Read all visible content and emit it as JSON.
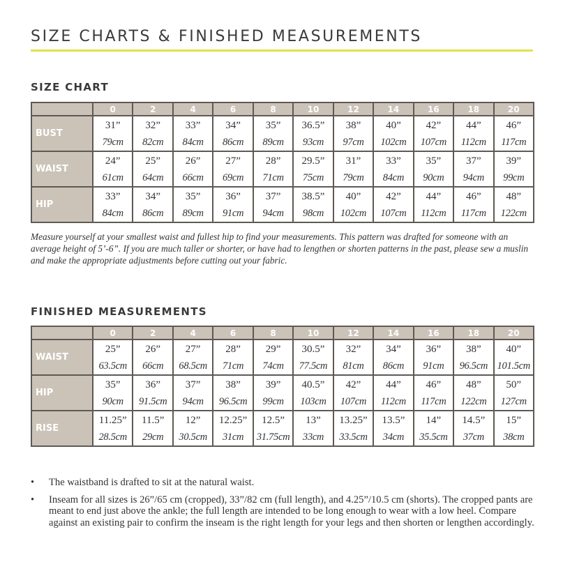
{
  "title": "SIZE CHARTS & FINISHED MEASUREMENTS",
  "accent_color": "#e1e34a",
  "header_color": "#cbc3b8",
  "size_chart": {
    "heading": "SIZE CHART",
    "sizes": [
      "0",
      "2",
      "4",
      "6",
      "8",
      "10",
      "12",
      "14",
      "16",
      "18",
      "20"
    ],
    "rows": [
      {
        "label": "BUST",
        "in": [
          "31”",
          "32”",
          "33”",
          "34”",
          "35”",
          "36.5”",
          "38”",
          "40”",
          "42”",
          "44”",
          "46”"
        ],
        "cm": [
          "79cm",
          "82cm",
          "84cm",
          "86cm",
          "89cm",
          "93cm",
          "97cm",
          "102cm",
          "107cm",
          "112cm",
          "117cm"
        ]
      },
      {
        "label": "WAIST",
        "in": [
          "24”",
          "25”",
          "26”",
          "27”",
          "28”",
          "29.5”",
          "31”",
          "33”",
          "35”",
          "37”",
          "39”"
        ],
        "cm": [
          "61cm",
          "64cm",
          "66cm",
          "69cm",
          "71cm",
          "75cm",
          "79cm",
          "84cm",
          "90cm",
          "94cm",
          "99cm"
        ]
      },
      {
        "label": "HIP",
        "in": [
          "33”",
          "34”",
          "35”",
          "36”",
          "37”",
          "38.5”",
          "40”",
          "42”",
          "44”",
          "46”",
          "48”"
        ],
        "cm": [
          "84cm",
          "86cm",
          "89cm",
          "91cm",
          "94cm",
          "98cm",
          "102cm",
          "107cm",
          "112cm",
          "117cm",
          "122cm"
        ]
      }
    ],
    "note": "Measure yourself at your smallest waist and fullest hip to find your measurements. This pattern was drafted for someone with an average height of 5’-6”. If you are much taller or shorter, or have had to lengthen or shorten patterns in the past, please sew a muslin and make the appropriate adjustments before cutting out your fabric."
  },
  "finished": {
    "heading": "FINISHED MEASUREMENTS",
    "sizes": [
      "0",
      "2",
      "4",
      "6",
      "8",
      "10",
      "12",
      "14",
      "16",
      "18",
      "20"
    ],
    "rows": [
      {
        "label": "WAIST",
        "in": [
          "25”",
          "26”",
          "27”",
          "28”",
          "29”",
          "30.5”",
          "32”",
          "34”",
          "36”",
          "38”",
          "40”"
        ],
        "cm": [
          "63.5cm",
          "66cm",
          "68.5cm",
          "71cm",
          "74cm",
          "77.5cm",
          "81cm",
          "86cm",
          "91cm",
          "96.5cm",
          "101.5cm"
        ]
      },
      {
        "label": "HIP",
        "in": [
          "35”",
          "36”",
          "37”",
          "38”",
          "39”",
          "40.5”",
          "42”",
          "44”",
          "46”",
          "48”",
          "50”"
        ],
        "cm": [
          "90cm",
          "91.5cm",
          "94cm",
          "96.5cm",
          "99cm",
          "103cm",
          "107cm",
          "112cm",
          "117cm",
          "122cm",
          "127cm"
        ]
      },
      {
        "label": "RISE",
        "in": [
          "11.25”",
          "11.5”",
          "12”",
          "12.25”",
          "12.5”",
          "13”",
          "13.25”",
          "13.5”",
          "14”",
          "14.5”",
          "15”"
        ],
        "cm": [
          "28.5cm",
          "29cm",
          "30.5cm",
          "31cm",
          "31.75cm",
          "33cm",
          "33.5cm",
          "34cm",
          "35.5cm",
          "37cm",
          "38cm"
        ]
      }
    ]
  },
  "bullets": [
    "The waistband is drafted to sit at the natural waist.",
    "Inseam for all sizes is 26”/65 cm (cropped), 33”/82 cm (full length), and 4.25”/10.5 cm (shorts). The cropped pants are meant to end just above the ankle; the full length are intended to be long enough to wear with a low heel. Compare against an existing pair to confirm the inseam is the right length for your legs and then shorten or lengthen accordingly."
  ]
}
